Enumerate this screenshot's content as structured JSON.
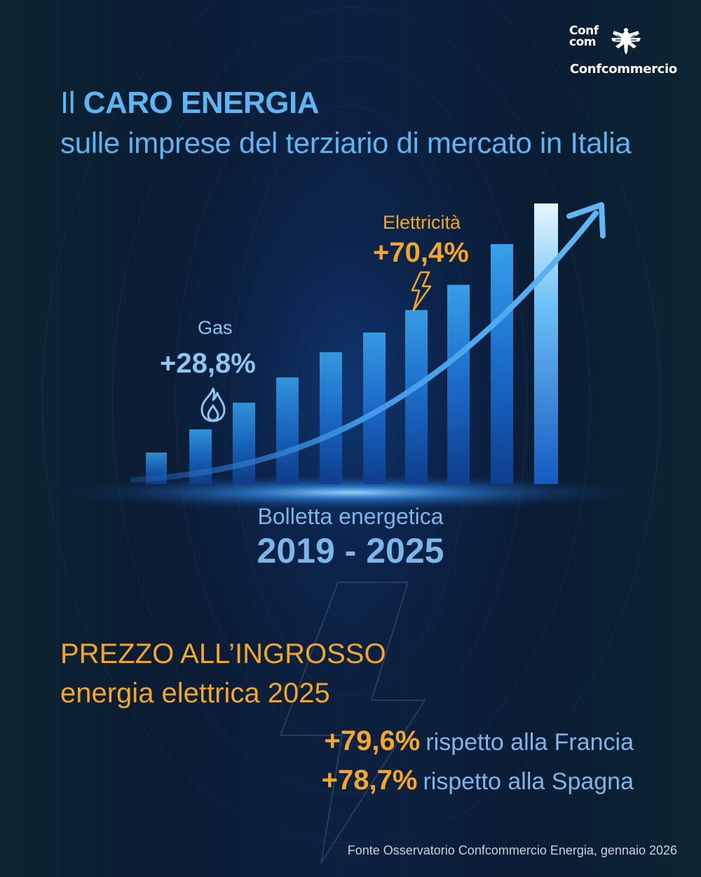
{
  "logo": {
    "mark_line1": "Conf",
    "mark_line2": "com",
    "name": "Confcommercio",
    "icon": "eagle-icon"
  },
  "header": {
    "title_prefix": "Il",
    "title_strong": "CARO ENERGIA",
    "subtitle": "sulle imprese del terziario di mercato in Italia"
  },
  "chart": {
    "gas_label": "Gas",
    "gas_value": "+28,8%",
    "gas_icon": "flame-icon",
    "electricity_label": "Elettricità",
    "electricity_value": "+70,4%",
    "electricity_icon": "lightning-icon",
    "trend_icon": "rising-arrow-icon",
    "bill_label": "Bolletta energetica",
    "bill_years": "2019 - 2025"
  },
  "wholesale": {
    "title": "PREZZO ALL’INGROSSO",
    "subtitle": "energia elettrica 2025",
    "comparisons": [
      {
        "value": "+79,6%",
        "text": "rispetto alla Francia"
      },
      {
        "value": "+78,7%",
        "text": "rispetto alla Spagna"
      }
    ]
  },
  "source": "Fonte Osservatorio Confcommercio Energia, gennaio 2026",
  "colors": {
    "background": "#0a1b33",
    "accent_blue": "#5fb4f2",
    "accent_orange": "#f4a62a",
    "text_light": "#c9d3e0"
  }
}
